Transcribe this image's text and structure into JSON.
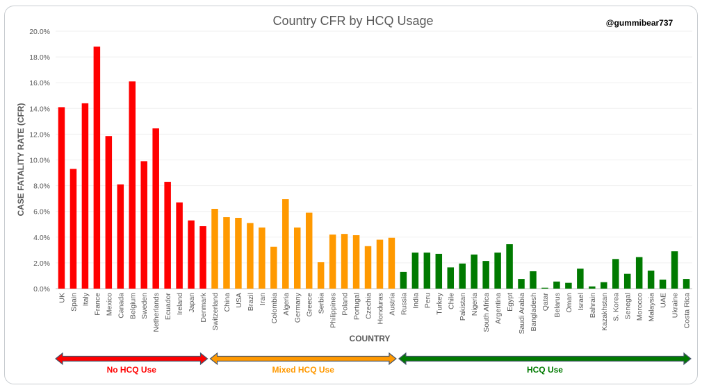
{
  "chart_data": {
    "type": "bar",
    "title": "Country CFR by HCQ Usage",
    "watermark": "@gummibear737",
    "xlabel": "COUNTRY",
    "ylabel": "CASE FATALITY RATE (CFR)",
    "ylim": [
      0,
      20
    ],
    "yticks": [
      "0.0%",
      "2.0%",
      "4.0%",
      "6.0%",
      "8.0%",
      "10.0%",
      "12.0%",
      "14.0%",
      "16.0%",
      "18.0%",
      "20.0%"
    ],
    "grid": true,
    "groups": [
      {
        "name": "No HCQ Use",
        "color": "#ff0000",
        "categories": [
          "UK",
          "Spain",
          "Italy",
          "France",
          "Mexico",
          "Canada",
          "Belgium",
          "Sweden",
          "Netherlands",
          "Ecuador",
          "Ireland",
          "Japan",
          "Denmark"
        ],
        "values": [
          14.1,
          9.3,
          14.4,
          18.8,
          11.85,
          8.1,
          16.1,
          9.9,
          12.45,
          8.3,
          6.7,
          5.3,
          4.85
        ]
      },
      {
        "name": "Mixed HCQ Use",
        "color": "#ff9900",
        "categories": [
          "Switzerland",
          "China",
          "USA",
          "Brazil",
          "Iran",
          "Colombia",
          "Algeria",
          "Germany",
          "Greece",
          "Serbia",
          "Philippines",
          "Poland",
          "Portugal",
          "Czechia",
          "Honduras",
          "Austria"
        ],
        "values": [
          6.2,
          5.55,
          5.5,
          5.1,
          4.75,
          3.25,
          6.95,
          4.75,
          5.9,
          2.05,
          4.2,
          4.25,
          4.15,
          3.3,
          3.8,
          3.95
        ]
      },
      {
        "name": "HCQ Use",
        "color": "#007a00",
        "categories": [
          "Russia",
          "India",
          "Peru",
          "Turkey",
          "Chile",
          "Pakistan",
          "Nigeria",
          "South Africa",
          "Argentina",
          "Egypt",
          "Saudi Arabia",
          "Bangladesh",
          "Qatar",
          "Belarus",
          "Oman",
          "Israel",
          "Bahrain",
          "Kazakhstan",
          "S. Korea",
          "Senegal",
          "Morocco",
          "Malaysia",
          "UAE",
          "Ukraine",
          "Costa Rica"
        ],
        "values": [
          1.3,
          2.8,
          2.8,
          2.7,
          1.65,
          1.95,
          2.65,
          2.15,
          2.8,
          3.45,
          0.75,
          1.35,
          0.07,
          0.55,
          0.45,
          1.55,
          0.17,
          0.5,
          2.3,
          1.15,
          2.45,
          1.4,
          0.7,
          2.9,
          0.75
        ]
      }
    ]
  }
}
